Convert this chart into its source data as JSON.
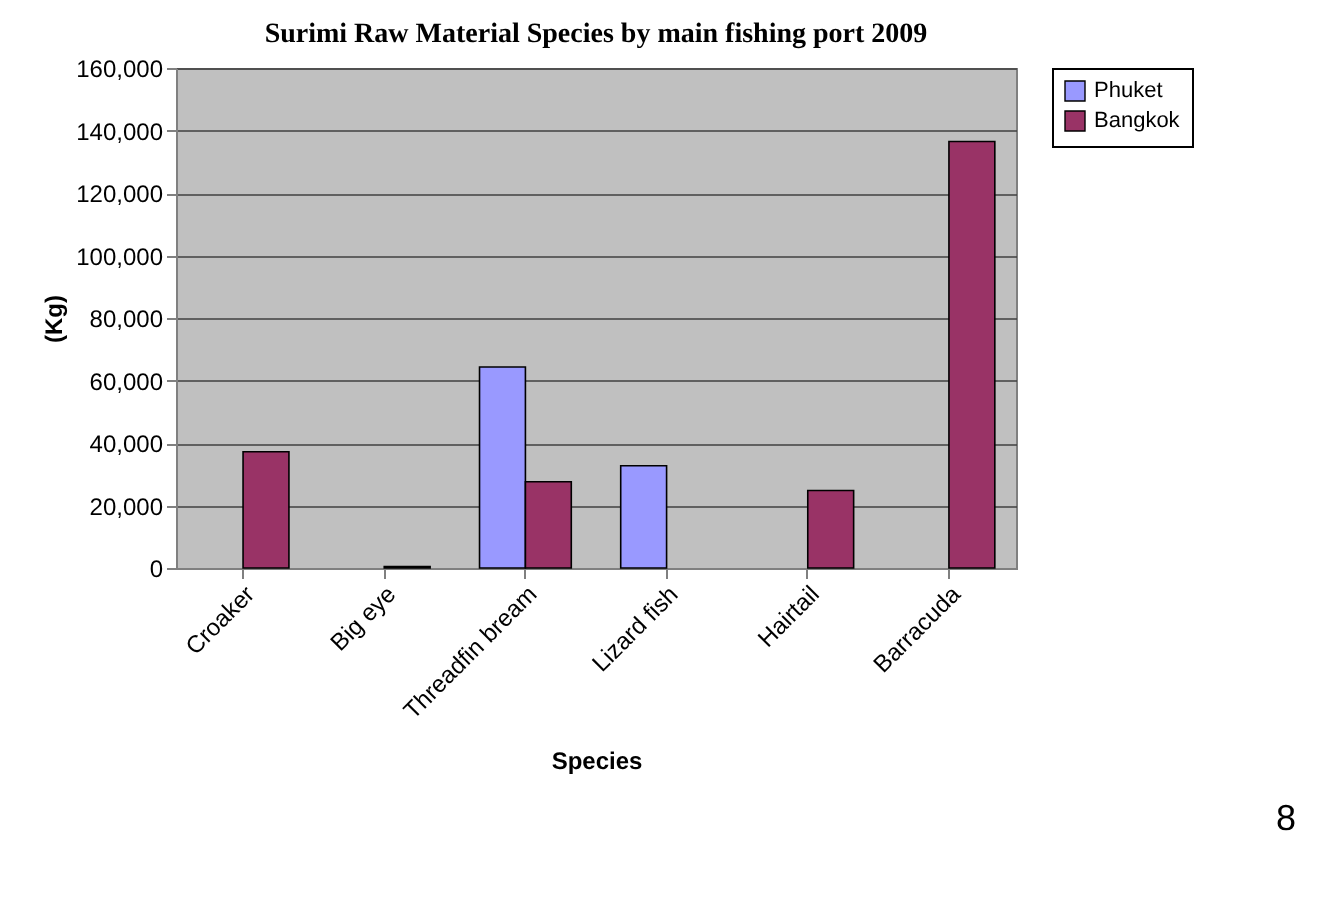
{
  "chart_data": {
    "type": "bar",
    "title": "Surimi Raw Material Species by main fishing port  2009",
    "xlabel": "Species",
    "ylabel": "(Kg)",
    "categories": [
      "Croaker",
      "Big eye",
      "Threadfin bream",
      "Lizard fish",
      "Hairtail",
      "Barracuda"
    ],
    "series": [
      {
        "name": "Phuket",
        "color": "#9999ff",
        "values": [
          null,
          null,
          64300,
          32700,
          null,
          null
        ]
      },
      {
        "name": "Bangkok",
        "color": "#993366",
        "values": [
          37200,
          500,
          27600,
          null,
          24800,
          136500
        ]
      }
    ],
    "ylim": [
      0,
      160000
    ],
    "yticks": [
      0,
      {
        "value": 20000,
        "label": "20,000"
      },
      {
        "value": 40000,
        "label": "40,000"
      },
      {
        "value": 60000,
        "label": "60,000"
      },
      {
        "value": 80000,
        "label": "80,000"
      },
      {
        "value": 100000,
        "label": "100,000"
      },
      {
        "value": 120000,
        "label": "120,000"
      },
      {
        "value": 140000,
        "label": "140,000"
      },
      {
        "value": 160000,
        "label": "160,000"
      }
    ],
    "grid": "y",
    "legend": "right",
    "annotations": [
      "8"
    ]
  }
}
